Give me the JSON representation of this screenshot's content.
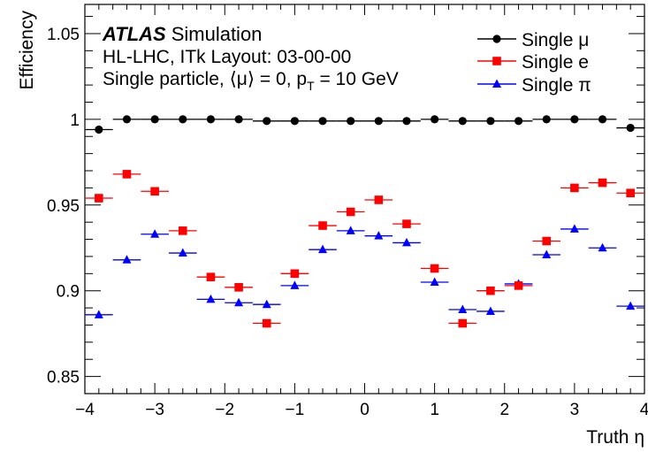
{
  "chart_data": {
    "type": "scatter",
    "xlabel": "Truth η",
    "ylabel": "Efficiency",
    "xlim": [
      -4,
      4
    ],
    "ylim": [
      0.84,
      1.067
    ],
    "x_ticks": [
      -4,
      -3,
      -2,
      -1,
      0,
      1,
      2,
      3,
      4
    ],
    "x_tick_labels": [
      "−4",
      "−3",
      "−2",
      "−1",
      "0",
      "1",
      "2",
      "3",
      "4"
    ],
    "y_ticks": [
      0.85,
      0.9,
      0.95,
      1,
      1.05
    ],
    "y_tick_labels": [
      "0.85",
      "0.9",
      "0.95",
      "1",
      "1.05"
    ],
    "grid": false,
    "legend_position": "top-right",
    "annotations": {
      "atlas": "ATLAS",
      "simulation": "Simulation",
      "layout": "HL-LHC, ITk Layout: 03-00-00",
      "conditions_prefix": "Single particle, ",
      "mu_open": "⟨",
      "mu": "μ",
      "mu_close": "⟩",
      "mu_value": " = 0, p",
      "pt_sub": "T",
      "pt_value": " = 10 GeV"
    },
    "x": [
      -3.8,
      -3.4,
      -3.0,
      -2.6,
      -2.2,
      -1.8,
      -1.4,
      -1.0,
      -0.6,
      -0.2,
      0.2,
      0.6,
      1.0,
      1.4,
      1.8,
      2.2,
      2.6,
      3.0,
      3.4,
      3.8
    ],
    "bin_half_width": 0.2,
    "series": [
      {
        "name": "Single μ",
        "marker": "circle",
        "color": "#000000",
        "values": [
          0.994,
          1.0,
          1.0,
          1.0,
          1.0,
          1.0,
          0.999,
          0.999,
          0.999,
          0.999,
          0.999,
          0.999,
          1.0,
          0.999,
          0.999,
          0.999,
          1.0,
          1.0,
          1.0,
          0.995
        ]
      },
      {
        "name": "Single e",
        "marker": "square",
        "color": "#ff0000",
        "values": [
          0.954,
          0.968,
          0.958,
          0.935,
          0.908,
          0.902,
          0.881,
          0.91,
          0.938,
          0.946,
          0.953,
          0.939,
          0.913,
          0.881,
          0.9,
          0.903,
          0.929,
          0.96,
          0.963,
          0.957
        ]
      },
      {
        "name": "Single π",
        "marker": "triangle",
        "color": "#0000ff",
        "values": [
          0.886,
          0.918,
          0.933,
          0.922,
          0.895,
          0.893,
          0.892,
          0.903,
          0.924,
          0.935,
          0.932,
          0.928,
          0.905,
          0.889,
          0.888,
          0.904,
          0.921,
          0.936,
          0.925,
          0.891
        ]
      }
    ]
  }
}
